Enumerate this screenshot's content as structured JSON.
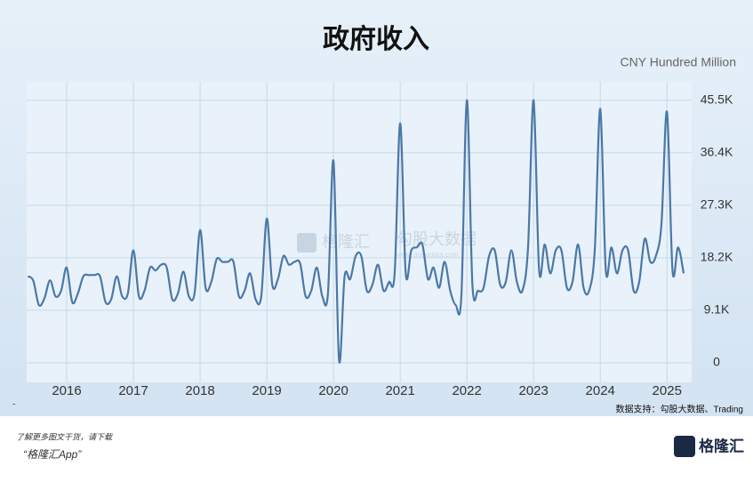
{
  "chart_data": {
    "type": "line",
    "title": "政府收入",
    "unit_label": "CNY Hundred Million",
    "source": "数据支持：勾股大数据、Trading",
    "watermark": {
      "brand": "格隆汇",
      "provider": "勾股大数据",
      "site": "www.gogudata.com"
    },
    "footer": {
      "marker": "-",
      "prompt": "了解更多图文干货，请下载",
      "app": "“格隆汇App”",
      "logo": "格隆汇"
    },
    "xlim": [
      2015.4,
      2025.37
    ],
    "xticks": [
      2016,
      2017,
      2018,
      2019,
      2020,
      2021,
      2022,
      2023,
      2024,
      2025
    ],
    "ylim": [
      -3400,
      48700
    ],
    "yticks": [
      0,
      {
        "value": 9100,
        "label": "9.1K"
      },
      {
        "value": 18200,
        "label": "18.2K"
      },
      {
        "value": 27300,
        "label": "27.3K"
      },
      {
        "value": 36400,
        "label": "36.4K"
      },
      {
        "value": 45500,
        "label": "45.5K"
      }
    ],
    "grid": true,
    "x": [
      2015.417,
      2015.5,
      2015.583,
      2015.667,
      2015.75,
      2015.833,
      2015.917,
      2016,
      2016.083,
      2016.167,
      2016.25,
      2016.333,
      2016.417,
      2016.5,
      2016.583,
      2016.667,
      2016.75,
      2016.833,
      2016.917,
      2017,
      2017.083,
      2017.167,
      2017.25,
      2017.333,
      2017.417,
      2017.5,
      2017.583,
      2017.667,
      2017.75,
      2017.833,
      2017.917,
      2018,
      2018.083,
      2018.167,
      2018.25,
      2018.333,
      2018.417,
      2018.5,
      2018.583,
      2018.667,
      2018.75,
      2018.833,
      2018.917,
      2019,
      2019.083,
      2019.167,
      2019.25,
      2019.333,
      2019.417,
      2019.5,
      2019.583,
      2019.667,
      2019.75,
      2019.833,
      2019.917,
      2020,
      2020.083,
      2020.167,
      2020.25,
      2020.333,
      2020.417,
      2020.5,
      2020.583,
      2020.667,
      2020.75,
      2020.833,
      2020.917,
      2021,
      2021.083,
      2021.167,
      2021.25,
      2021.333,
      2021.417,
      2021.5,
      2021.583,
      2021.667,
      2021.75,
      2021.833,
      2021.917,
      2022,
      2022.083,
      2022.167,
      2022.25,
      2022.333,
      2022.417,
      2022.5,
      2022.583,
      2022.667,
      2022.75,
      2022.833,
      2022.917,
      2023,
      2023.083,
      2023.167,
      2023.25,
      2023.333,
      2023.417,
      2023.5,
      2023.583,
      2023.667,
      2023.75,
      2023.833,
      2023.917,
      2024,
      2024.083,
      2024.167,
      2024.25,
      2024.333,
      2024.417,
      2024.5,
      2024.583,
      2024.667,
      2024.75,
      2024.833,
      2024.917,
      2025,
      2025.083,
      2025.167,
      2025.25
    ],
    "series": [
      {
        "color": "#4a78a8",
        "values": [
          15000,
          14200,
          10000,
          11200,
          14300,
          11500,
          12500,
          16500,
          10500,
          12000,
          15000,
          15200,
          15200,
          15000,
          10500,
          11000,
          15000,
          11500,
          12000,
          19500,
          11500,
          12500,
          16500,
          16000,
          17000,
          16500,
          11000,
          12000,
          15800,
          11500,
          12000,
          23000,
          13000,
          14000,
          18000,
          17500,
          17500,
          17500,
          11500,
          12500,
          15500,
          11000,
          11500,
          25000,
          13500,
          14500,
          18500,
          17000,
          17500,
          17200,
          11500,
          12500,
          16500,
          11500,
          12000,
          35000,
          500,
          15000,
          14500,
          18500,
          18500,
          12500,
          13500,
          17000,
          12500,
          14000,
          15500,
          41500,
          15500,
          19500,
          20000,
          20500,
          14500,
          16500,
          13000,
          17500,
          12500,
          10000,
          11500,
          45500,
          13500,
          12500,
          13000,
          18500,
          19500,
          13500,
          14000,
          19500,
          14000,
          12500,
          20000,
          45500,
          16000,
          20500,
          15500,
          19500,
          19500,
          13000,
          14000,
          20500,
          13000,
          12500,
          19500,
          44000,
          16000,
          20000,
          15500,
          19500,
          19500,
          12500,
          14000,
          21500,
          17500,
          18500,
          24000,
          43500,
          16000,
          20000,
          15500
        ]
      }
    ]
  }
}
